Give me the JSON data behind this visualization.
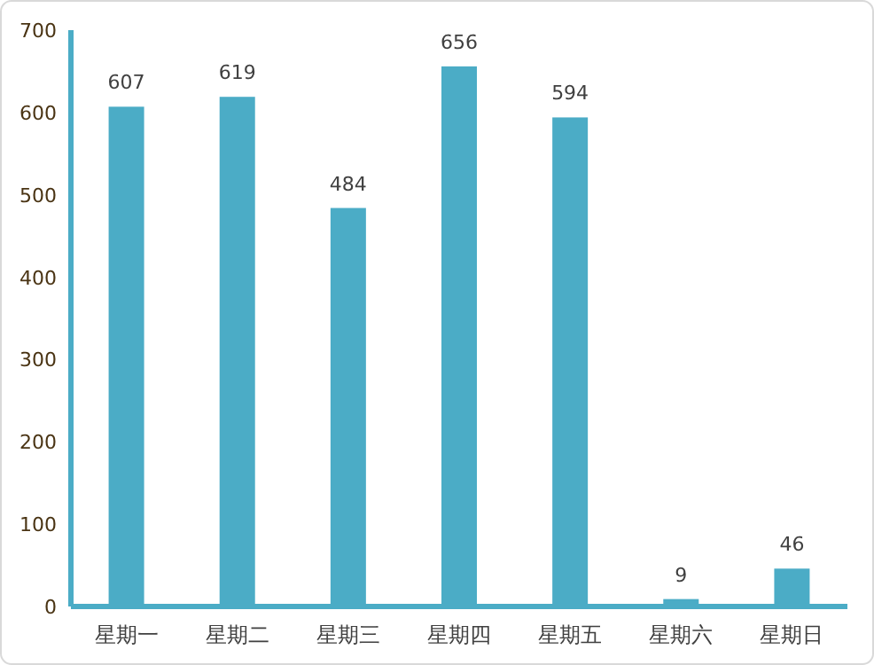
{
  "chart_data": {
    "type": "bar",
    "categories": [
      "星期一",
      "星期二",
      "星期三",
      "星期四",
      "星期五",
      "星期六",
      "星期日"
    ],
    "values": [
      607,
      619,
      484,
      656,
      594,
      9,
      46
    ],
    "color": "#4bacc6",
    "ylim": [
      0,
      700
    ],
    "yticks": [
      0,
      100,
      200,
      300,
      400,
      500,
      600,
      700
    ],
    "data_labels": true
  }
}
